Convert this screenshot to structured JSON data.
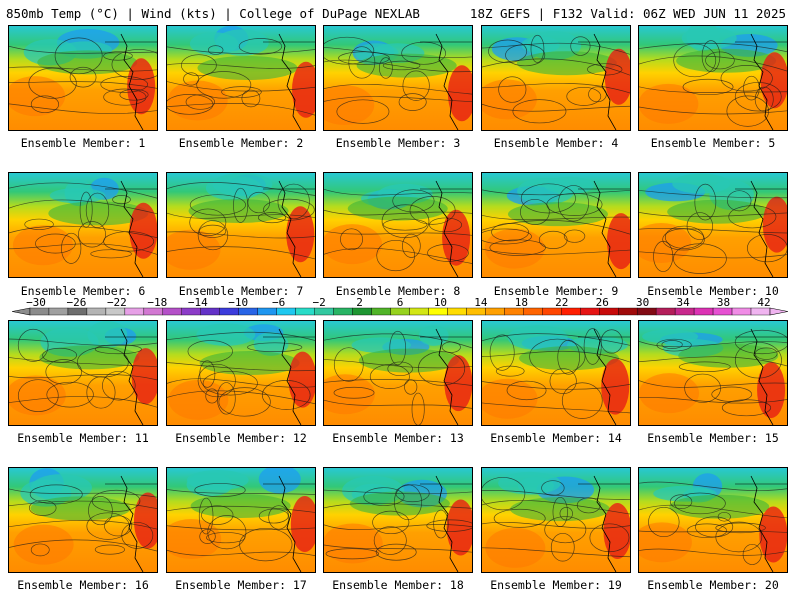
{
  "header": {
    "title": "850mb Temp (°C) | Wind (kts) | College of DuPage NEXLAB",
    "run": "18Z GEFS | F132 Valid: 06Z WED JUN 11 2025"
  },
  "members": [
    {
      "caption": "Ensemble Member: 1"
    },
    {
      "caption": "Ensemble Member: 2"
    },
    {
      "caption": "Ensemble Member: 3"
    },
    {
      "caption": "Ensemble Member: 4"
    },
    {
      "caption": "Ensemble Member: 5"
    },
    {
      "caption": "Ensemble Member: 6"
    },
    {
      "caption": "Ensemble Member: 7"
    },
    {
      "caption": "Ensemble Member: 8"
    },
    {
      "caption": "Ensemble Member: 9"
    },
    {
      "caption": "Ensemble Member: 10"
    },
    {
      "caption": "Ensemble Member: 11"
    },
    {
      "caption": "Ensemble Member: 12"
    },
    {
      "caption": "Ensemble Member: 13"
    },
    {
      "caption": "Ensemble Member: 14"
    },
    {
      "caption": "Ensemble Member: 15"
    },
    {
      "caption": "Ensemble Member: 16"
    },
    {
      "caption": "Ensemble Member: 17"
    },
    {
      "caption": "Ensemble Member: 18"
    },
    {
      "caption": "Ensemble Member: 19"
    },
    {
      "caption": "Ensemble Member: 20"
    }
  ],
  "colorbar": {
    "labels": [
      "−30",
      "−26",
      "−22",
      "−18",
      "−14",
      "−10",
      "−6",
      "−2",
      "2",
      "6",
      "10",
      "14",
      "18",
      "22",
      "26",
      "30",
      "34",
      "38",
      "42"
    ],
    "colors": [
      "#8c8c8c",
      "#a0a0a0",
      "#6e6e6e",
      "#b4b4b4",
      "#c8c8c8",
      "#e6a0e6",
      "#d278d2",
      "#b450c8",
      "#8c3cc8",
      "#6432c8",
      "#3c3cdc",
      "#2864e6",
      "#1e96f0",
      "#1ec8f0",
      "#28dcc8",
      "#32c8a0",
      "#28b464",
      "#1e9632",
      "#50b428",
      "#96d21e",
      "#d2e614",
      "#ffff00",
      "#ffdc00",
      "#ffbe00",
      "#ffa000",
      "#ff8200",
      "#ff6400",
      "#ff4600",
      "#ff1e00",
      "#e61414",
      "#c80a0a",
      "#a00a0a",
      "#820a14",
      "#b41e5a",
      "#c8288c",
      "#dc32b4",
      "#e650d2",
      "#f08ce6",
      "#f0b4f0"
    ]
  }
}
